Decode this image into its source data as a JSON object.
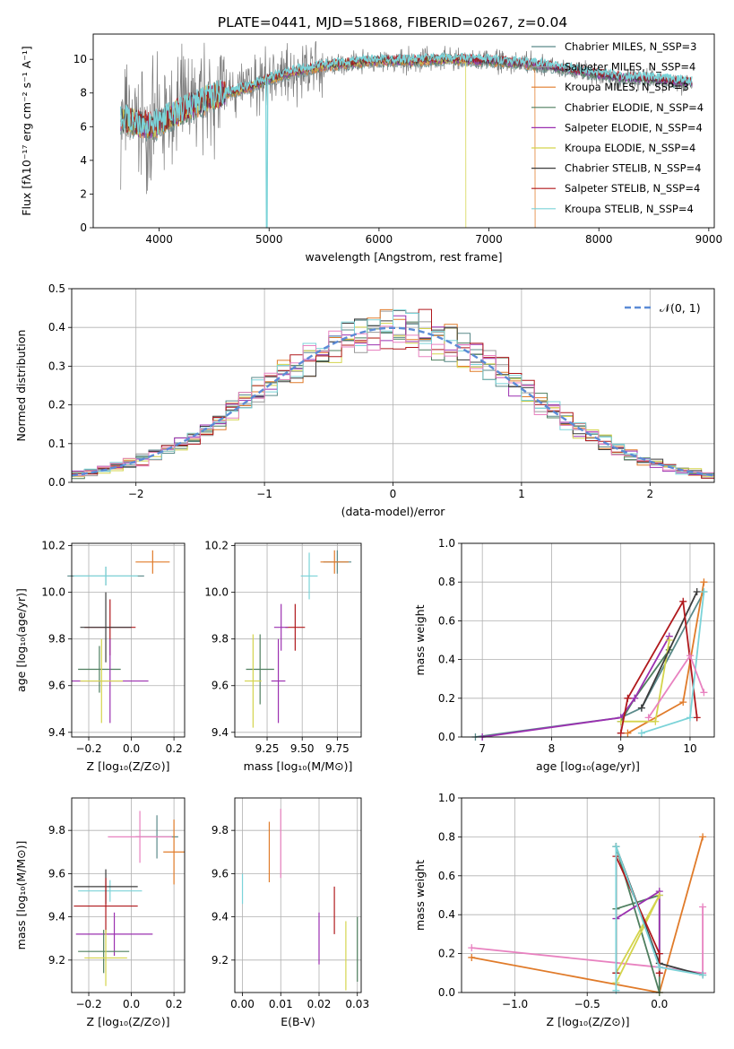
{
  "figure_title": "PLATE=0441, MJD=51868, FIBERID=0267, z=0.04",
  "series_colors": [
    "#5a8a8a",
    "#9a9a9a",
    "#e07b2a",
    "#4f7f5f",
    "#9b30b0",
    "#d4d44c",
    "#3c3c3c",
    "#b0181c",
    "#7bd3d8"
  ],
  "chart_data": [
    {
      "id": "spectrum",
      "type": "line",
      "xlabel": "wavelength [Angstrom, rest frame]",
      "ylabel": "Flux [fλ10⁻¹⁷ erg cm⁻² s⁻¹ A⁻¹]",
      "xlim": [
        3400,
        9050
      ],
      "ylim": [
        0,
        11.5
      ],
      "xticks": [
        "4000",
        "5000",
        "6000",
        "7000",
        "8000",
        "9000"
      ],
      "yticks": [
        "0",
        "2",
        "4",
        "6",
        "8",
        "10"
      ],
      "legend_position": "right",
      "series": [
        {
          "name": "Chabrier MILES, N_SSP=3"
        },
        {
          "name": "Salpeter MILES, N_SSP=4"
        },
        {
          "name": "Kroupa MILES, N_SSP=3"
        },
        {
          "name": "Chabrier ELODIE, N_SSP=4"
        },
        {
          "name": "Salpeter ELODIE, N_SSP=4"
        },
        {
          "name": "Kroupa ELODIE, N_SSP=4"
        },
        {
          "name": "Chabrier STELIB, N_SSP=4"
        },
        {
          "name": "Salpeter STELIB, N_SSP=4"
        },
        {
          "name": "Kroupa STELIB, N_SSP=4"
        }
      ],
      "continuum": [
        [
          3650,
          6.4
        ],
        [
          3800,
          6.2
        ],
        [
          3950,
          6.0
        ],
        [
          4100,
          6.6
        ],
        [
          4300,
          7.2
        ],
        [
          4500,
          7.8
        ],
        [
          4800,
          8.3
        ],
        [
          5000,
          8.8
        ],
        [
          5200,
          9.2
        ],
        [
          5500,
          9.6
        ],
        [
          5800,
          9.8
        ],
        [
          6000,
          9.9
        ],
        [
          6300,
          9.9
        ],
        [
          6600,
          10.0
        ],
        [
          7000,
          9.9
        ],
        [
          7400,
          9.7
        ],
        [
          7600,
          9.5
        ],
        [
          7800,
          9.3
        ],
        [
          8000,
          9.1
        ],
        [
          8200,
          8.9
        ],
        [
          8500,
          8.8
        ],
        [
          8850,
          8.6
        ]
      ],
      "grid": false
    },
    {
      "id": "residuals",
      "type": "histogram",
      "xlabel": "(data-model)/error",
      "ylabel": "Normed distribution",
      "xlim": [
        -2.5,
        2.5
      ],
      "ylim": [
        0,
        0.5
      ],
      "xticks": [
        "−2",
        "−1",
        "0",
        "1",
        "2"
      ],
      "yticks": [
        "0.0",
        "0.1",
        "0.2",
        "0.3",
        "0.4",
        "0.5"
      ],
      "bins": 50,
      "reference_curve": "𝒩(0, 1)",
      "legend_position": "top-right",
      "grid": true
    },
    {
      "id": "age_vs_Z",
      "type": "errorbar",
      "xlabel": "Z [log₁₀(Z/Z⊙)]",
      "ylabel": "age  [log₁₀(age/yr)]",
      "xlim": [
        -0.28,
        0.25
      ],
      "ylim": [
        9.38,
        10.21
      ],
      "xticks": [
        "−0.2",
        "0.0",
        "0.2"
      ],
      "yticks": [
        "9.4",
        "9.6",
        "9.8",
        "10.0",
        "10.2"
      ],
      "points": [
        {
          "series": 0,
          "x": -0.12,
          "y": 10.07,
          "xerr": 0.18,
          "yerr": 0.04
        },
        {
          "series": 2,
          "x": 0.1,
          "y": 10.13,
          "xerr": 0.08,
          "yerr": 0.05
        },
        {
          "series": 8,
          "x": -0.12,
          "y": 10.07,
          "xerr": 0.15,
          "yerr": 0.04
        },
        {
          "series": 7,
          "x": -0.1,
          "y": 9.85,
          "xerr": 0.12,
          "yerr": 0.12
        },
        {
          "series": 6,
          "x": -0.12,
          "y": 9.85,
          "xerr": 0.12,
          "yerr": 0.15
        },
        {
          "series": 3,
          "x": -0.15,
          "y": 9.67,
          "xerr": 0.1,
          "yerr": 0.1
        },
        {
          "series": 4,
          "x": -0.1,
          "y": 9.62,
          "xerr": 0.18,
          "yerr": 0.18
        },
        {
          "series": 5,
          "x": -0.14,
          "y": 9.62,
          "xerr": 0.1,
          "yerr": 0.18
        }
      ],
      "grid": true
    },
    {
      "id": "age_vs_mass",
      "type": "errorbar",
      "xlabel": "mass [log₁₀(M/M⊙)]",
      "ylabel": "",
      "xlim": [
        9.02,
        9.92
      ],
      "ylim": [
        9.38,
        10.21
      ],
      "xticks": [
        "9.25",
        "9.50",
        "9.75"
      ],
      "yticks": [
        "9.4",
        "9.6",
        "9.8",
        "10.0",
        "10.2"
      ],
      "points": [
        {
          "series": 0,
          "x": 9.75,
          "y": 10.13,
          "xerr": 0.1,
          "yerr": 0.05
        },
        {
          "series": 2,
          "x": 9.73,
          "y": 10.13,
          "xerr": 0.1,
          "yerr": 0.05
        },
        {
          "series": 8,
          "x": 9.55,
          "y": 10.07,
          "xerr": 0.06,
          "yerr": 0.1
        },
        {
          "series": 7,
          "x": 9.45,
          "y": 9.85,
          "xerr": 0.07,
          "yerr": 0.1
        },
        {
          "series": 4,
          "x": 9.35,
          "y": 9.85,
          "xerr": 0.05,
          "yerr": 0.1
        },
        {
          "series": 3,
          "x": 9.2,
          "y": 9.67,
          "xerr": 0.1,
          "yerr": 0.15
        },
        {
          "series": 4,
          "x": 9.33,
          "y": 9.62,
          "xerr": 0.05,
          "yerr": 0.18
        },
        {
          "series": 5,
          "x": 9.15,
          "y": 9.62,
          "xerr": 0.06,
          "yerr": 0.2
        }
      ],
      "grid": true
    },
    {
      "id": "weight_vs_age",
      "type": "line",
      "xlabel": "age  [log₁₀(age/yr)]",
      "ylabel": "mass weight",
      "xlim": [
        6.7,
        10.35
      ],
      "ylim": [
        0,
        1
      ],
      "xticks": [
        "7",
        "8",
        "9",
        "10"
      ],
      "yticks": [
        "0.0",
        "0.2",
        "0.4",
        "0.6",
        "0.8",
        "1.0"
      ],
      "series": [
        {
          "series": 0,
          "x": [
            6.9,
            9.0,
            9.3,
            10.2
          ],
          "y": [
            0.0,
            0.1,
            0.15,
            0.75
          ]
        },
        {
          "series": 2,
          "x": [
            9.1,
            9.9,
            10.2
          ],
          "y": [
            0.02,
            0.18,
            0.8
          ]
        },
        {
          "series": 3,
          "x": [
            9.0,
            9.2,
            9.7
          ],
          "y": [
            0.08,
            0.2,
            0.45
          ]
        },
        {
          "series": 4,
          "x": [
            7.0,
            9.0,
            9.2,
            9.7
          ],
          "y": [
            0.0,
            0.1,
            0.2,
            0.52
          ]
        },
        {
          "series": 5,
          "x": [
            9.0,
            9.5,
            9.7
          ],
          "y": [
            0.08,
            0.08,
            0.5
          ]
        },
        {
          "series": 6,
          "x": [
            9.3,
            10.1
          ],
          "y": [
            0.15,
            0.75
          ]
        },
        {
          "series": 7,
          "x": [
            9.0,
            9.1,
            9.9,
            10.1
          ],
          "y": [
            0.02,
            0.2,
            0.7,
            0.1
          ]
        },
        {
          "series": 8,
          "x": [
            9.3,
            10.0,
            10.2
          ],
          "y": [
            0.02,
            0.1,
            0.75
          ]
        },
        {
          "series": 9,
          "x": [
            9.4,
            10.0,
            10.2
          ],
          "y": [
            0.1,
            0.42,
            0.23
          ]
        }
      ],
      "grid": true
    },
    {
      "id": "mass_vs_Z",
      "type": "errorbar",
      "xlabel": "Z [log₁₀(Z/Z⊙)]",
      "ylabel": "mass [log₁₀(M/M⊙)]",
      "xlim": [
        -0.28,
        0.25
      ],
      "ylim": [
        9.05,
        9.95
      ],
      "xticks": [
        "−0.2",
        "0.0",
        "0.2"
      ],
      "yticks": [
        "9.2",
        "9.4",
        "9.6",
        "9.8"
      ],
      "points": [
        {
          "series": 0,
          "x": 0.12,
          "y": 9.77,
          "xerr": 0.1,
          "yerr": 0.1
        },
        {
          "series": 2,
          "x": 0.2,
          "y": 9.7,
          "xerr": 0.05,
          "yerr": 0.15
        },
        {
          "series": 9,
          "x": 0.04,
          "y": 9.77,
          "xerr": 0.15,
          "yerr": 0.12
        },
        {
          "series": 8,
          "x": -0.1,
          "y": 9.52,
          "xerr": 0.15,
          "yerr": 0.05
        },
        {
          "series": 6,
          "x": -0.12,
          "y": 9.54,
          "xerr": 0.15,
          "yerr": 0.08
        },
        {
          "series": 7,
          "x": -0.12,
          "y": 9.45,
          "xerr": 0.15,
          "yerr": 0.13
        },
        {
          "series": 4,
          "x": -0.08,
          "y": 9.32,
          "xerr": 0.18,
          "yerr": 0.1
        },
        {
          "series": 3,
          "x": -0.13,
          "y": 9.24,
          "xerr": 0.12,
          "yerr": 0.1
        },
        {
          "series": 5,
          "x": -0.12,
          "y": 9.21,
          "xerr": 0.1,
          "yerr": 0.13
        }
      ],
      "grid": true
    },
    {
      "id": "mass_vs_ebv",
      "type": "errorbar",
      "xlabel": "E(B-V)",
      "ylabel": "",
      "xlim": [
        -0.002,
        0.031
      ],
      "ylim": [
        9.05,
        9.95
      ],
      "xticks": [
        "0.00",
        "0.01",
        "0.02",
        "0.03"
      ],
      "yticks": [
        "9.2",
        "9.4",
        "9.6",
        "9.8"
      ],
      "points": [
        {
          "series": 8,
          "x": 0.0,
          "y": 9.53,
          "xerr": 0,
          "yerr": 0.07
        },
        {
          "series": 2,
          "x": 0.007,
          "y": 9.7,
          "xerr": 0,
          "yerr": 0.14
        },
        {
          "series": 9,
          "x": 0.01,
          "y": 9.74,
          "xerr": 0,
          "yerr": 0.16
        },
        {
          "series": 4,
          "x": 0.02,
          "y": 9.3,
          "xerr": 0,
          "yerr": 0.12
        },
        {
          "series": 7,
          "x": 0.024,
          "y": 9.43,
          "xerr": 0,
          "yerr": 0.11
        },
        {
          "series": 5,
          "x": 0.027,
          "y": 9.22,
          "xerr": 0,
          "yerr": 0.16
        },
        {
          "series": 3,
          "x": 0.03,
          "y": 9.25,
          "xerr": 0,
          "yerr": 0.15
        }
      ],
      "grid": true
    },
    {
      "id": "weight_vs_Z",
      "type": "line",
      "xlabel": "Z [log₁₀(Z/Z⊙)]",
      "ylabel": "mass weight",
      "xlim": [
        -1.37,
        0.38
      ],
      "ylim": [
        0,
        1
      ],
      "xticks": [
        "−1.0",
        "−0.5",
        "0.0"
      ],
      "yticks": [
        "0.0",
        "0.2",
        "0.4",
        "0.6",
        "0.8",
        "1.0"
      ],
      "series": [
        {
          "series": 2,
          "x": [
            -1.3,
            0.0,
            0.3
          ],
          "y": [
            0.18,
            0.0,
            0.8
          ]
        },
        {
          "series": 9,
          "x": [
            -1.3,
            0.0,
            0.3,
            0.3
          ],
          "y": [
            0.23,
            0.13,
            0.1,
            0.44
          ]
        },
        {
          "series": 3,
          "x": [
            -0.3,
            0.0,
            0.0,
            -0.3
          ],
          "y": [
            0.43,
            0.5,
            0.0,
            0.75
          ]
        },
        {
          "series": 4,
          "x": [
            -0.3,
            0.0,
            0.0
          ],
          "y": [
            0.38,
            0.52,
            0.2
          ]
        },
        {
          "series": 5,
          "x": [
            -0.3,
            0.0,
            -0.3
          ],
          "y": [
            0.1,
            0.5,
            0.05
          ]
        },
        {
          "series": 6,
          "x": [
            -0.3,
            -0.3,
            0.0,
            0.3
          ],
          "y": [
            0.1,
            0.75,
            0.15,
            0.09
          ]
        },
        {
          "series": 7,
          "x": [
            -0.3,
            -0.3,
            0.0,
            0.0
          ],
          "y": [
            0.1,
            0.7,
            0.2,
            0.1
          ]
        },
        {
          "series": 8,
          "x": [
            -0.3,
            -0.3,
            0.0,
            0.3
          ],
          "y": [
            0.01,
            0.75,
            0.13,
            0.09
          ]
        }
      ],
      "grid": true
    }
  ]
}
